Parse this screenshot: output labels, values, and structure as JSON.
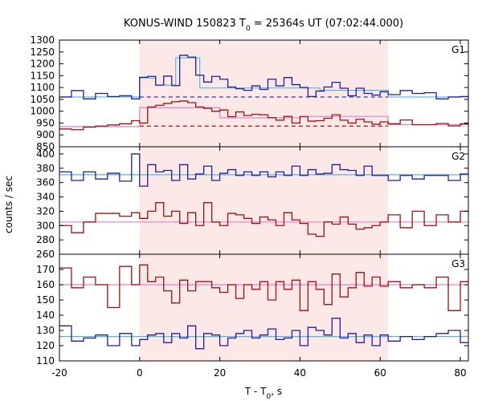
{
  "chart_data": {
    "type": "line",
    "title": "KONUS-WIND 150823 T₀ = 25364s UT (07:02:44.000)",
    "title_parts": {
      "prefix": "KONUS-WIND 150823 T",
      "sub": "0",
      "suffix": " = 25364s UT (07:02:44.000)"
    },
    "xlabel": "T - T0, s",
    "xlabel_parts": {
      "prefix": "T - T",
      "sub": "0",
      "suffix": ", s"
    },
    "ylabel": "counts / sec",
    "xlim": [
      -20,
      82
    ],
    "x_ticks": [
      -20,
      0,
      20,
      40,
      60,
      80
    ],
    "x_tick_labels": [
      "-20",
      "0",
      "20",
      "40",
      "60",
      "80"
    ],
    "highlight_interval": [
      0,
      62
    ],
    "colors": {
      "highlight": "#fde8e8",
      "blue_series": "#1f1f99",
      "red_series": "#a01010",
      "blue_fit": "#5ab4e0",
      "red_fit": "#e082c8",
      "blue_bg": "#1f1f99",
      "red_bg": "#a01010"
    },
    "bin_edges": [
      -20,
      -17,
      -14,
      -11,
      -8,
      -5,
      -2,
      0,
      2,
      4,
      6,
      8,
      10,
      12,
      14,
      16,
      18,
      20,
      22,
      24,
      26,
      28,
      30,
      32,
      34,
      36,
      38,
      40,
      42,
      44,
      46,
      48,
      50,
      52,
      54,
      56,
      58,
      60,
      62,
      65,
      68,
      71,
      74,
      77,
      80,
      82
    ],
    "panels": [
      {
        "label": "G1",
        "ylim": [
          850,
          1300
        ],
        "y_ticks": [
          850,
          900,
          950,
          1000,
          1050,
          1100,
          1150,
          1200,
          1250,
          1300
        ],
        "series": [
          {
            "color_key": "blue_series",
            "values": [
              1060,
              1087,
              1052,
              1075,
              1062,
              1065,
              1052,
              1143,
              1147,
              1110,
              1148,
              1108,
              1236,
              1228,
              1152,
              1123,
              1147,
              1135,
              1102,
              1095,
              1088,
              1107,
              1092,
              1135,
              1107,
              1142,
              1112,
              1100,
              1062,
              1085,
              1102,
              1122,
              1097,
              1065,
              1097,
              1075,
              1068,
              1082,
              1070,
              1087,
              1075,
              1078,
              1052,
              1060,
              1062
            ]
          },
          {
            "color_key": "red_series",
            "values": [
              925,
              922,
              933,
              937,
              942,
              947,
              960,
              950,
              1018,
              1025,
              1033,
              1040,
              1043,
              1036,
              1018,
              1012,
              1000,
              1005,
              977,
              997,
              982,
              987,
              985,
              973,
              962,
              978,
              950,
              977,
              958,
              960,
              970,
              985,
              962,
              950,
              966,
              955,
              945,
              955,
              947,
              963,
              943,
              943,
              948,
              938,
              947
            ]
          }
        ],
        "fits": [
          {
            "color_key": "blue_fit",
            "segments": [
              {
                "x": [
                  -20,
                  0
                ],
                "y": 1060
              },
              {
                "x": [
                  0,
                  4
                ],
                "y": 1140
              },
              {
                "x": [
                  4,
                  9
                ],
                "y": 1110
              },
              {
                "x": [
                  9,
                  15
                ],
                "y": 1225
              },
              {
                "x": [
                  15,
                  45
                ],
                "y": 1098
              },
              {
                "x": [
                  45,
                  62
                ],
                "y": 1088
              },
              {
                "x": [
                  62,
                  82
                ],
                "y": 1060
              }
            ]
          },
          {
            "color_key": "red_fit",
            "segments": [
              {
                "x": [
                  -20,
                  0
                ],
                "y": 935
              },
              {
                "x": [
                  0,
                  20
                ],
                "y": 1015
              },
              {
                "x": [
                  20,
                  40
                ],
                "y": 972
              },
              {
                "x": [
                  40,
                  62
                ],
                "y": 978
              },
              {
                "x": [
                  62,
                  82
                ],
                "y": 943
              }
            ]
          }
        ],
        "backgrounds": [
          {
            "color_key": "blue_bg",
            "x": [
              0,
              62
            ],
            "y": 1060
          },
          {
            "color_key": "red_bg",
            "x": [
              0,
              62
            ],
            "y": 937
          }
        ]
      },
      {
        "label": "G2",
        "ylim": [
          260,
          410
        ],
        "y_ticks": [
          260,
          280,
          300,
          320,
          340,
          360,
          380,
          400
        ],
        "series": [
          {
            "color_key": "blue_series",
            "values": [
              375,
              363,
              375,
              365,
              373,
              362,
              400,
              355,
              385,
              375,
              377,
              363,
              385,
              365,
              372,
              383,
              363,
              373,
              378,
              370,
              375,
              370,
              375,
              368,
              375,
              370,
              383,
              370,
              378,
              372,
              373,
              385,
              378,
              377,
              370,
              383,
              370,
              370,
              363,
              370,
              365,
              370,
              370,
              363,
              372
            ]
          },
          {
            "color_key": "red_series",
            "values": [
              300,
              290,
              305,
              317,
              317,
              313,
              318,
              310,
              320,
              332,
              313,
              320,
              303,
              318,
              300,
              332,
              305,
              300,
              317,
              315,
              310,
              303,
              312,
              308,
              300,
              318,
              308,
              303,
              288,
              285,
              305,
              302,
              312,
              302,
              295,
              297,
              300,
              305,
              315,
              297,
              320,
              300,
              315,
              305,
              320
            ]
          }
        ],
        "fits": [
          {
            "color_key": "blue_fit",
            "segments": [
              {
                "x": [
                  -20,
                  82
                ],
                "y": 371
              }
            ]
          },
          {
            "color_key": "red_fit",
            "segments": [
              {
                "x": [
                  -20,
                  82
                ],
                "y": 305
              }
            ]
          }
        ],
        "backgrounds": []
      },
      {
        "label": "G3",
        "ylim": [
          110,
          180
        ],
        "y_ticks": [
          110,
          120,
          130,
          140,
          150,
          160,
          170
        ],
        "series": [
          {
            "color_key": "blue_series",
            "values": [
              133,
              123,
              125,
              127,
              120,
              128,
              120,
              124,
              127,
              128,
              122,
              128,
              125,
              133,
              118,
              128,
              127,
              120,
              125,
              128,
              130,
              125,
              127,
              131,
              124,
              125,
              130,
              120,
              132,
              130,
              127,
              138,
              125,
              128,
              122,
              127,
              120,
              127,
              123,
              126,
              124,
              126,
              128,
              130,
              122
            ]
          },
          {
            "color_key": "red_series",
            "values": [
              171,
              158,
              165,
              160,
              145,
              172,
              160,
              173,
              162,
              165,
              156,
              148,
              163,
              156,
              162,
              162,
              158,
              155,
              160,
              151,
              160,
              157,
              162,
              150,
              162,
              157,
              163,
              143,
              162,
              157,
              147,
              167,
              152,
              158,
              168,
              159,
              165,
              159,
              162,
              158,
              160,
              158,
              165,
              143,
              162
            ]
          }
        ],
        "fits": [
          {
            "color_key": "blue_fit",
            "segments": [
              {
                "x": [
                  -20,
                  82
                ],
                "y": 126
              }
            ]
          },
          {
            "color_key": "red_fit",
            "segments": [
              {
                "x": [
                  -20,
                  82
                ],
                "y": 160
              }
            ]
          }
        ],
        "backgrounds": []
      }
    ]
  }
}
